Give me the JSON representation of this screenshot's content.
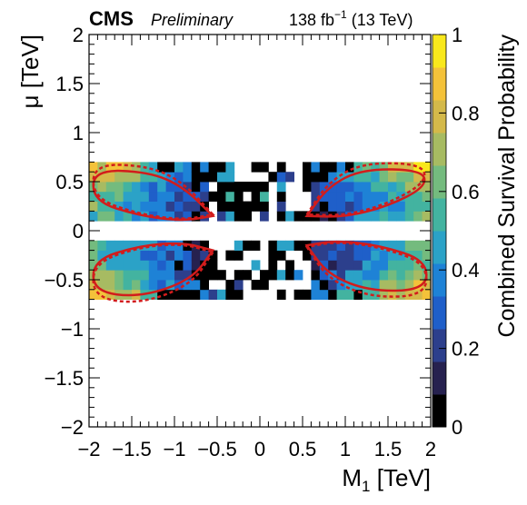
{
  "header": {
    "experiment": "CMS",
    "status": "Preliminary",
    "lumi": "138 fb",
    "lumi_exp": "−1",
    "energy": " (13 TeV)"
  },
  "chart_data": {
    "type": "heatmap",
    "xlabel": "M",
    "xlabel_sub": "1",
    "xlabel_unit": " [TeV]",
    "ylabel": "μ [TeV]",
    "zlabel": "Combined Survival Probability",
    "xlim": [
      -2,
      2
    ],
    "ylim": [
      -2,
      2
    ],
    "zlim": [
      0,
      1
    ],
    "x_ticks": [
      "−2",
      "−1.5",
      "−1",
      "−0.5",
      "0",
      "0.5",
      "1",
      "1.5",
      "2"
    ],
    "y_ticks": [
      "−2",
      "−1.5",
      "−1",
      "−0.5",
      "0",
      "0.5",
      "1",
      "1.5",
      "2"
    ],
    "z_ticks": [
      "0",
      "0.2",
      "0.4",
      "0.6",
      "0.8",
      "1"
    ],
    "colors": {
      "palette": [
        "#000000",
        "#26214f",
        "#2c3f8c",
        "#1f5fc9",
        "#1e82d6",
        "#2ba2c7",
        "#43b3a0",
        "#74bb7e",
        "#a7bb62",
        "#d4b94a",
        "#f4c23a",
        "#f9e81c"
      ],
      "contour": "#d21c1c"
    },
    "bins": {
      "x_edges_step": 0.1,
      "y_edges_step": 0.1,
      "populated_mu_bands": [
        [
          0.1,
          0.7
        ],
        [
          -0.7,
          -0.1
        ]
      ],
      "notes": "Survival probability is high (yellow) at |M1|≈2 TeV and |μ|≈0.7 TeV, decreasing toward the centre; many bins near the centre are 0 (black) or empty (white)."
    },
    "contours": [
      {
        "style": "solid",
        "region": "upper-left"
      },
      {
        "style": "solid",
        "region": "upper-right"
      },
      {
        "style": "solid",
        "region": "lower-left"
      },
      {
        "style": "solid",
        "region": "lower-right"
      },
      {
        "style": "dashed",
        "region": "upper-left"
      },
      {
        "style": "dashed",
        "region": "upper-right"
      },
      {
        "style": "dashed",
        "region": "lower-left"
      },
      {
        "style": "dashed",
        "region": "lower-right"
      }
    ]
  }
}
